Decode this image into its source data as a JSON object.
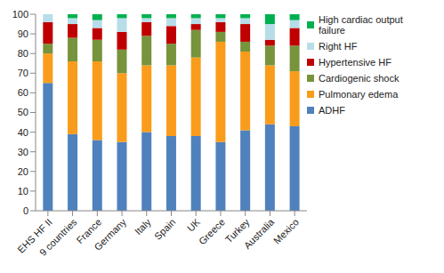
{
  "chart_data": {
    "type": "bar",
    "stacked": true,
    "grid": false,
    "legend": "right",
    "categories": [
      "EHS HF II",
      "9 countries",
      "France",
      "Germany",
      "Italy",
      "Spain",
      "UK",
      "Greece",
      "Turkey",
      "Australia",
      "Mexico"
    ],
    "ylim": [
      0,
      100
    ],
    "yticks": [
      0,
      10,
      20,
      30,
      40,
      50,
      60,
      70,
      80,
      90,
      100
    ],
    "series": [
      {
        "name": "ADHF",
        "color": "#4f81bd",
        "values": [
          65,
          39,
          36,
          35,
          40,
          38,
          38,
          35,
          41,
          44,
          43
        ]
      },
      {
        "name": "Pulmonary edema",
        "color": "#fa9c1b",
        "values": [
          15,
          37,
          40,
          35,
          34,
          36,
          40,
          51,
          40,
          30,
          28
        ]
      },
      {
        "name": "Cardiogenic shock",
        "color": "#77933c",
        "values": [
          5,
          12,
          11,
          12,
          15,
          11,
          14,
          5,
          5,
          10,
          13
        ]
      },
      {
        "name": "Hypertensive HF",
        "color": "#c00000",
        "values": [
          11,
          7,
          6,
          9,
          7,
          9,
          3,
          5,
          9,
          3,
          9
        ]
      },
      {
        "name": "Right HF",
        "color": "#b7dee8",
        "values": [
          4,
          3,
          4,
          7,
          2,
          4,
          3,
          2,
          3,
          8,
          4
        ]
      },
      {
        "name": "High cardiac output failure",
        "color": "#00b050",
        "values": [
          0,
          2,
          3,
          2,
          2,
          2,
          2,
          2,
          2,
          5,
          3
        ]
      }
    ]
  }
}
